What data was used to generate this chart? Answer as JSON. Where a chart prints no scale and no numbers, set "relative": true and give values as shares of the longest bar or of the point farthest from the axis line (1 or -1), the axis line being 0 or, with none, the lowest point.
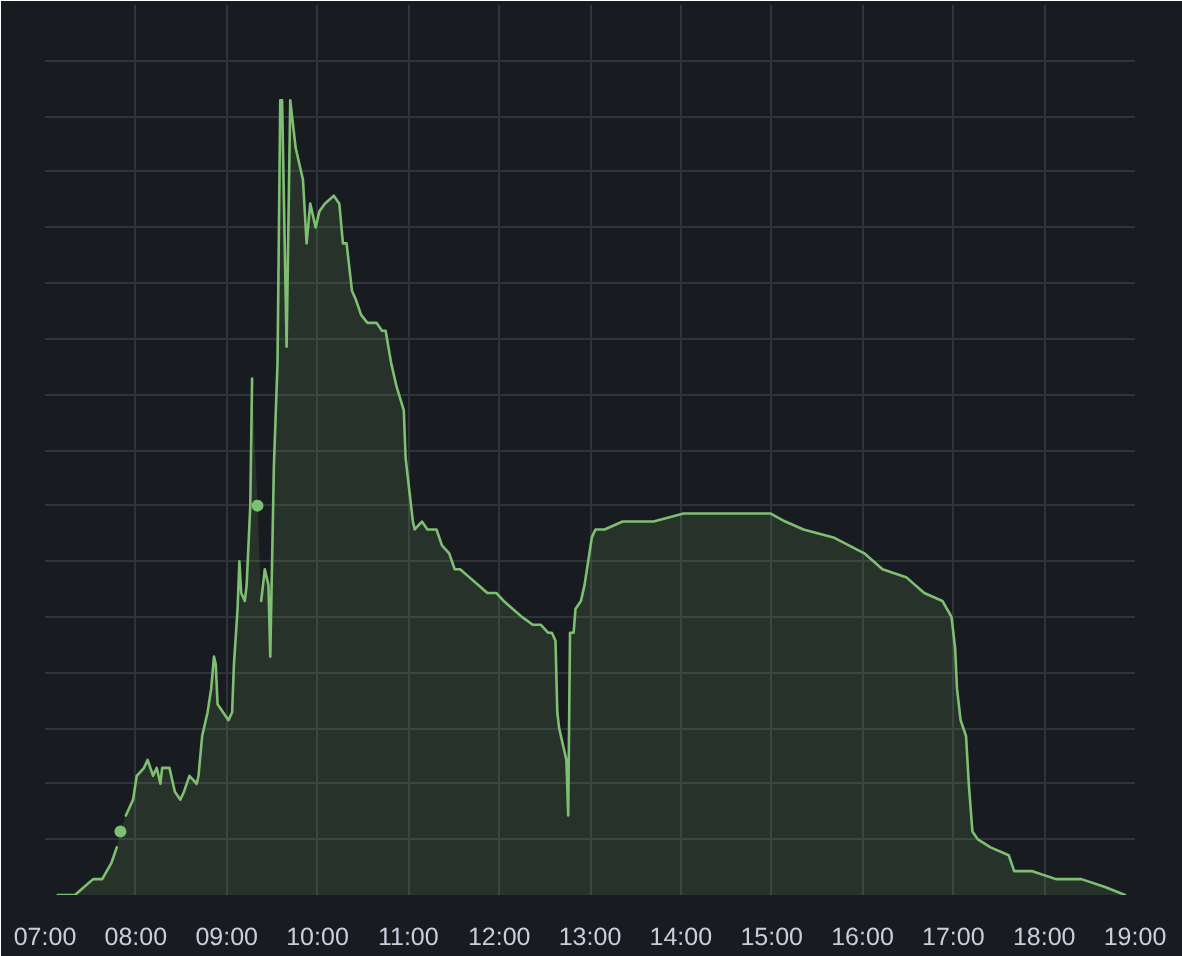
{
  "chart_data": {
    "type": "area",
    "relative": true,
    "color": "#7fbf72",
    "grid": true,
    "tick_labels": "x",
    "xlim": [
      7,
      19
    ],
    "xticks": [
      {
        "value": 7,
        "label": "07:00"
      },
      {
        "value": 8,
        "label": "08:00"
      },
      {
        "value": 9,
        "label": "09:00"
      },
      {
        "value": 10,
        "label": "10:00"
      },
      {
        "value": 11,
        "label": "11:00"
      },
      {
        "value": 12,
        "label": "12:00"
      },
      {
        "value": 13,
        "label": "13:00"
      },
      {
        "value": 14,
        "label": "14:00"
      },
      {
        "value": 15,
        "label": "15:00"
      },
      {
        "value": 16,
        "label": "16:00"
      },
      {
        "value": 17,
        "label": "17:00"
      },
      {
        "value": 18,
        "label": "18:00"
      },
      {
        "value": 19,
        "label": "19:00"
      }
    ],
    "x": [
      7.14,
      7.33,
      7.43,
      7.53,
      7.63,
      7.73,
      7.79,
      7.81,
      7.83,
      7.85,
      7.89,
      7.97,
      8.01,
      8.09,
      8.13,
      8.19,
      8.23,
      8.27,
      8.29,
      8.37,
      8.43,
      8.49,
      8.53,
      8.59,
      8.67,
      8.69,
      8.73,
      8.79,
      8.83,
      8.86,
      8.88,
      8.9,
      8.96,
      9.02,
      9.06,
      9.08,
      9.12,
      9.14,
      9.16,
      9.2,
      9.22,
      9.26,
      9.28,
      9.3,
      9.34,
      9.36,
      9.38,
      9.42,
      9.46,
      9.48,
      9.52,
      9.56,
      9.59,
      9.61,
      9.66,
      9.7,
      9.76,
      9.78,
      9.84,
      9.88,
      9.92,
      9.98,
      10.02,
      10.08,
      10.18,
      10.24,
      10.28,
      10.32,
      10.38,
      10.42,
      10.48,
      10.55,
      10.65,
      10.71,
      10.75,
      10.81,
      10.87,
      10.95,
      10.97,
      11.01,
      11.05,
      11.07,
      11.15,
      11.21,
      11.31,
      11.37,
      11.45,
      11.51,
      11.57,
      11.67,
      11.77,
      11.87,
      11.97,
      12.05,
      12.15,
      12.25,
      12.37,
      12.46,
      12.54,
      12.58,
      12.62,
      12.64,
      12.66,
      12.7,
      12.74,
      12.76,
      12.78,
      12.82,
      12.84,
      12.9,
      12.94,
      12.98,
      13.02,
      13.06,
      13.16,
      13.36,
      13.7,
      14.03,
      14.35,
      14.69,
      14.99,
      15.15,
      15.35,
      15.68,
      16.02,
      16.22,
      16.48,
      16.68,
      16.88,
      16.98,
      17.02,
      17.04,
      17.08,
      17.14,
      17.17,
      17.21,
      17.27,
      17.41,
      17.61,
      17.67,
      17.87,
      18.13,
      18.41,
      18.67,
      18.89
    ],
    "values": [
      0,
      0,
      0.01,
      0.02,
      0.02,
      0.04,
      0.06,
      null,
      0.08,
      null,
      0.1,
      0.12,
      0.15,
      0.16,
      0.17,
      0.15,
      0.16,
      0.14,
      0.16,
      0.16,
      0.13,
      0.12,
      0.13,
      0.15,
      0.14,
      0.15,
      0.2,
      0.23,
      0.26,
      0.3,
      0.29,
      0.24,
      0.23,
      0.22,
      0.23,
      0.29,
      0.36,
      0.42,
      0.38,
      0.37,
      0.39,
      0.49,
      0.65,
      null,
      0.49,
      null,
      0.37,
      0.41,
      0.39,
      0.3,
      0.54,
      0.67,
      1.0,
      1.0,
      0.69,
      1.0,
      0.94,
      0.93,
      0.9,
      0.82,
      0.87,
      0.84,
      0.86,
      0.87,
      0.88,
      0.87,
      0.82,
      0.82,
      0.76,
      0.75,
      0.73,
      0.72,
      0.72,
      0.71,
      0.71,
      0.67,
      0.64,
      0.61,
      0.55,
      0.51,
      0.47,
      0.46,
      0.47,
      0.46,
      0.46,
      0.44,
      0.43,
      0.41,
      0.41,
      0.4,
      0.39,
      0.38,
      0.38,
      0.37,
      0.36,
      0.35,
      0.34,
      0.34,
      0.33,
      0.33,
      0.32,
      0.23,
      0.21,
      0.19,
      0.17,
      0.1,
      0.33,
      0.33,
      0.36,
      0.37,
      0.39,
      0.42,
      0.45,
      0.46,
      0.46,
      0.47,
      0.47,
      0.48,
      0.48,
      0.48,
      0.48,
      0.47,
      0.46,
      0.45,
      0.43,
      0.41,
      0.4,
      0.38,
      0.37,
      0.35,
      0.31,
      0.26,
      0.22,
      0.2,
      0.14,
      0.08,
      0.07,
      0.06,
      0.05,
      0.03,
      0.03,
      0.02,
      0.02,
      0.01,
      0
    ]
  }
}
